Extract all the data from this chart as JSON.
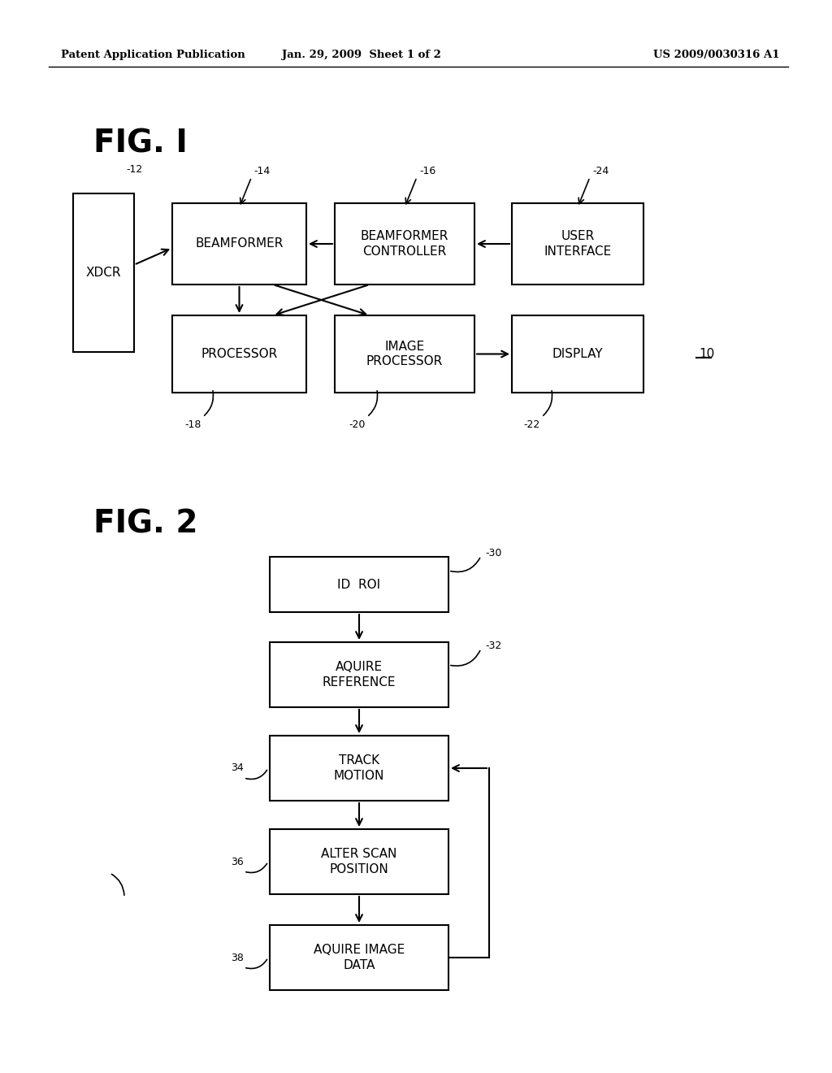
{
  "bg_color": "#ffffff",
  "header_left": "Patent Application Publication",
  "header_mid": "Jan. 29, 2009  Sheet 1 of 2",
  "header_right": "US 2009/0030316 A1",
  "fig1_label": "FIG. I",
  "fig2_label": "FIG. 2"
}
